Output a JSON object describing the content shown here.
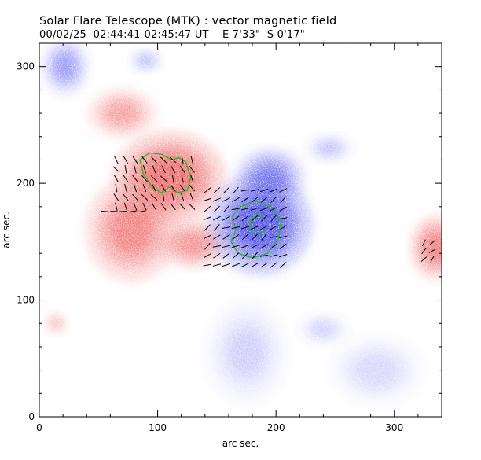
{
  "chart_data": {
    "type": "heatmap",
    "title": "Solar Flare Telescope (MTK) : vector magnetic field",
    "subtitle": "00/02/25  02:44:41-02:45:47 UT    E 7'33\"  S 0'17\"",
    "xlabel": "arc sec.",
    "ylabel": "arc sec.",
    "xlim": [
      0,
      340
    ],
    "ylim": [
      0,
      320
    ],
    "x_ticks": [
      0,
      100,
      200,
      300
    ],
    "y_ticks": [
      0,
      100,
      200,
      300
    ],
    "x_tick_labels": [
      "0",
      "100",
      "200",
      "300"
    ],
    "y_tick_labels": [
      "0",
      "100",
      "200",
      "300"
    ],
    "colors": {
      "positive_polarity": "#f06464",
      "negative_polarity": "#4848f0",
      "contour": "#22b822",
      "vectors": "#000000"
    },
    "regions": [
      {
        "polarity": "positive",
        "x": 110,
        "y": 205,
        "rx": 48,
        "ry": 40,
        "strength": 1.0
      },
      {
        "polarity": "positive",
        "x": 78,
        "y": 160,
        "rx": 40,
        "ry": 45,
        "strength": 0.75
      },
      {
        "polarity": "positive",
        "x": 130,
        "y": 148,
        "rx": 30,
        "ry": 22,
        "strength": 0.6
      },
      {
        "polarity": "positive",
        "x": 70,
        "y": 260,
        "rx": 30,
        "ry": 22,
        "strength": 0.5
      },
      {
        "polarity": "positive",
        "x": 335,
        "y": 145,
        "rx": 22,
        "ry": 28,
        "strength": 0.8
      },
      {
        "polarity": "positive",
        "x": 14,
        "y": 80,
        "rx": 10,
        "ry": 10,
        "strength": 0.35
      },
      {
        "polarity": "negative",
        "x": 187,
        "y": 165,
        "rx": 44,
        "ry": 44,
        "strength": 1.0
      },
      {
        "polarity": "negative",
        "x": 195,
        "y": 205,
        "rx": 30,
        "ry": 26,
        "strength": 0.6
      },
      {
        "polarity": "negative",
        "x": 22,
        "y": 300,
        "rx": 20,
        "ry": 25,
        "strength": 0.45
      },
      {
        "polarity": "negative",
        "x": 245,
        "y": 230,
        "rx": 20,
        "ry": 12,
        "strength": 0.25
      },
      {
        "polarity": "negative",
        "x": 90,
        "y": 305,
        "rx": 14,
        "ry": 10,
        "strength": 0.3
      },
      {
        "polarity": "negative",
        "x": 175,
        "y": 55,
        "rx": 35,
        "ry": 45,
        "strength": 0.18
      },
      {
        "polarity": "negative",
        "x": 285,
        "y": 40,
        "rx": 40,
        "ry": 30,
        "strength": 0.15
      },
      {
        "polarity": "negative",
        "x": 240,
        "y": 75,
        "rx": 22,
        "ry": 14,
        "strength": 0.18
      }
    ],
    "contours": [
      [
        [
          85,
          220
        ],
        [
          93,
          226
        ],
        [
          103,
          225
        ],
        [
          112,
          220
        ],
        [
          118,
          222
        ],
        [
          124,
          218
        ],
        [
          128,
          205
        ],
        [
          125,
          194
        ],
        [
          117,
          192
        ],
        [
          110,
          197
        ],
        [
          103,
          192
        ],
        [
          96,
          196
        ],
        [
          88,
          208
        ],
        [
          85,
          220
        ]
      ],
      [
        [
          163,
          172
        ],
        [
          170,
          180
        ],
        [
          182,
          185
        ],
        [
          196,
          180
        ],
        [
          204,
          168
        ],
        [
          202,
          152
        ],
        [
          193,
          140
        ],
        [
          180,
          136
        ],
        [
          168,
          140
        ],
        [
          162,
          150
        ],
        [
          166,
          160
        ],
        [
          163,
          172
        ]
      ],
      [
        [
          178,
          168
        ],
        [
          184,
          174
        ],
        [
          191,
          170
        ],
        [
          191,
          160
        ],
        [
          184,
          156
        ],
        [
          178,
          160
        ],
        [
          178,
          168
        ]
      ]
    ],
    "vector_fields": [
      {
        "x_range": [
          65,
          130
        ],
        "y_range": [
          180,
          222
        ],
        "step": 8,
        "angle_deg": -60,
        "length": 7
      },
      {
        "x_range": [
          55,
          90
        ],
        "y_range": [
          176,
          182
        ],
        "step": 8,
        "angle_deg": 15,
        "length": 6
      },
      {
        "x_range": [
          142,
          212
        ],
        "y_range": [
          130,
          200
        ],
        "step": 8,
        "angle_deg": 30,
        "length": 7
      },
      {
        "x_range": [
          325,
          338
        ],
        "y_range": [
          135,
          150
        ],
        "step": 7,
        "angle_deg": 45,
        "length": 6
      }
    ]
  }
}
